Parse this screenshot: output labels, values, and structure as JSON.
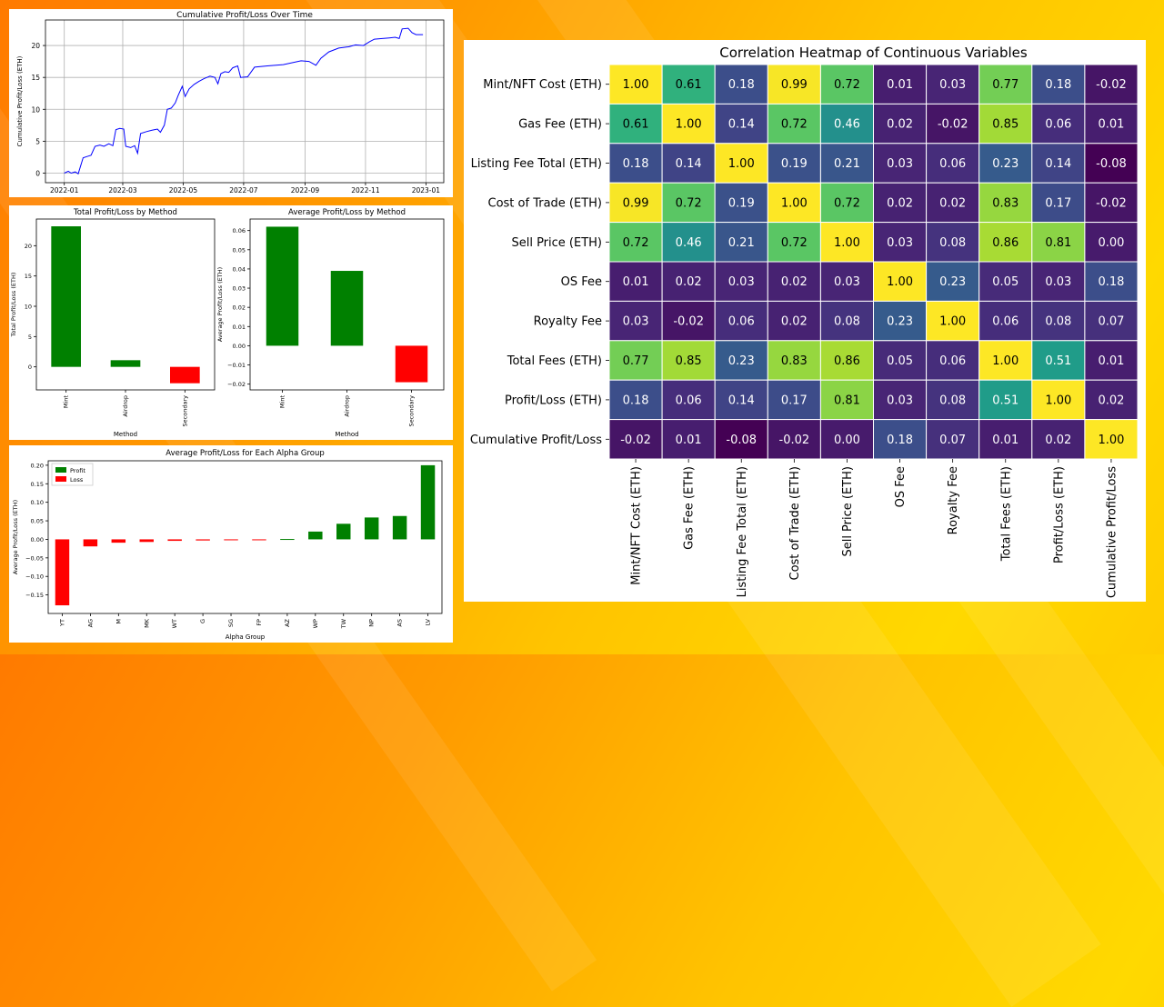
{
  "chart_data": [
    {
      "id": "cumulative",
      "type": "line",
      "title": "Cumulative Profit/Loss Over Time",
      "xlabel": "Date",
      "ylabel": "Cumulative Profit/Loss (ETH)",
      "x_ticks": [
        "2022-01",
        "2022-03",
        "2022-05",
        "2022-07",
        "2022-09",
        "2022-11",
        "2023-01"
      ],
      "y_ticks": [
        "0",
        "5",
        "10",
        "15",
        "20"
      ],
      "ylim": [
        -1.5,
        24
      ],
      "xlim": [
        "2021-12-13",
        "2023-01-19"
      ],
      "color": "#0000ff",
      "grid": true,
      "points": [
        [
          "2022-01-01",
          0.0
        ],
        [
          "2022-01-05",
          0.3
        ],
        [
          "2022-01-08",
          0.0
        ],
        [
          "2022-01-12",
          0.2
        ],
        [
          "2022-01-15",
          -0.1
        ],
        [
          "2022-01-20",
          2.4
        ],
        [
          "2022-01-24",
          2.6
        ],
        [
          "2022-01-28",
          2.8
        ],
        [
          "2022-02-01",
          4.2
        ],
        [
          "2022-02-06",
          4.4
        ],
        [
          "2022-02-10",
          4.2
        ],
        [
          "2022-02-15",
          4.6
        ],
        [
          "2022-02-19",
          4.3
        ],
        [
          "2022-02-22",
          6.8
        ],
        [
          "2022-02-26",
          7.0
        ],
        [
          "2022-03-02",
          6.9
        ],
        [
          "2022-03-04",
          4.2
        ],
        [
          "2022-03-09",
          4.0
        ],
        [
          "2022-03-13",
          4.3
        ],
        [
          "2022-03-16",
          3.1
        ],
        [
          "2022-03-19",
          6.2
        ],
        [
          "2022-03-25",
          6.5
        ],
        [
          "2022-03-30",
          6.7
        ],
        [
          "2022-04-05",
          6.9
        ],
        [
          "2022-04-08",
          6.4
        ],
        [
          "2022-04-12",
          7.5
        ],
        [
          "2022-04-15",
          10.0
        ],
        [
          "2022-04-19",
          10.2
        ],
        [
          "2022-04-23",
          11.0
        ],
        [
          "2022-04-26",
          12.2
        ],
        [
          "2022-04-30",
          13.6
        ],
        [
          "2022-05-03",
          12.0
        ],
        [
          "2022-05-07",
          13.2
        ],
        [
          "2022-05-12",
          13.9
        ],
        [
          "2022-05-17",
          14.4
        ],
        [
          "2022-05-22",
          14.8
        ],
        [
          "2022-05-28",
          15.2
        ],
        [
          "2022-06-02",
          15.0
        ],
        [
          "2022-06-05",
          14.0
        ],
        [
          "2022-06-08",
          15.6
        ],
        [
          "2022-06-12",
          15.9
        ],
        [
          "2022-06-16",
          15.8
        ],
        [
          "2022-06-20",
          16.5
        ],
        [
          "2022-06-25",
          16.8
        ],
        [
          "2022-06-28",
          15.0
        ],
        [
          "2022-07-05",
          15.1
        ],
        [
          "2022-07-12",
          16.6
        ],
        [
          "2022-07-25",
          16.8
        ],
        [
          "2022-08-10",
          17.0
        ],
        [
          "2022-08-28",
          17.6
        ],
        [
          "2022-09-05",
          17.5
        ],
        [
          "2022-09-12",
          16.9
        ],
        [
          "2022-09-17",
          18.0
        ],
        [
          "2022-09-25",
          19.0
        ],
        [
          "2022-10-05",
          19.6
        ],
        [
          "2022-10-15",
          19.8
        ],
        [
          "2022-10-22",
          20.1
        ],
        [
          "2022-10-30",
          20.0
        ],
        [
          "2022-11-05",
          20.6
        ],
        [
          "2022-11-10",
          21.0
        ],
        [
          "2022-11-18",
          21.1
        ],
        [
          "2022-11-25",
          21.2
        ],
        [
          "2022-12-01",
          21.3
        ],
        [
          "2022-12-05",
          21.1
        ],
        [
          "2022-12-08",
          22.6
        ],
        [
          "2022-12-14",
          22.7
        ],
        [
          "2022-12-18",
          22.0
        ],
        [
          "2022-12-22",
          21.7
        ],
        [
          "2022-12-29",
          21.7
        ]
      ]
    },
    {
      "id": "total",
      "type": "bar",
      "title": "Total Profit/Loss by Method",
      "xlabel": "Method",
      "ylabel": "Total Profit/Loss (ETH)",
      "categories": [
        "Mint",
        "Airdrop",
        "Secondary"
      ],
      "values": [
        23.2,
        1.1,
        -2.7
      ],
      "colors": [
        "#008000",
        "#008000",
        "#ff0000"
      ],
      "ylim": [
        -3.8,
        24.4
      ],
      "y_ticks": [
        0,
        5,
        10,
        15,
        20
      ]
    },
    {
      "id": "average",
      "type": "bar",
      "title": "Average Profit/Loss by Method",
      "xlabel": "Method",
      "ylabel": "Average Profit/Loss (ETH)",
      "categories": [
        "Mint",
        "Airdrop",
        "Secondary"
      ],
      "values": [
        0.062,
        0.039,
        -0.019
      ],
      "colors": [
        "#008000",
        "#008000",
        "#ff0000"
      ],
      "ylim": [
        -0.023,
        0.066
      ],
      "y_ticks": [
        -0.02,
        -0.01,
        0.0,
        0.01,
        0.02,
        0.03,
        0.04,
        0.05,
        0.06
      ],
      "y_tick_labels": [
        "−0.02",
        "−0.01",
        "0.00",
        "0.01",
        "0.02",
        "0.03",
        "0.04",
        "0.05",
        "0.06"
      ]
    },
    {
      "id": "alpha",
      "type": "bar",
      "title": "Average Profit/Loss for Each Alpha Group",
      "xlabel": "Alpha Group",
      "ylabel": "Average Profit/Loss (ETH)",
      "categories": [
        "YT",
        "AG",
        "M",
        "MK",
        "WT",
        "G",
        "SG",
        "FP",
        "AZ",
        "WP",
        "TW",
        "NP",
        "AS",
        "LV"
      ],
      "values": [
        -0.178,
        -0.019,
        -0.009,
        -0.007,
        -0.004,
        -0.003,
        -0.002,
        -0.002,
        0.001,
        0.021,
        0.042,
        0.059,
        0.063,
        0.2
      ],
      "ylim": [
        -0.2,
        0.212
      ],
      "y_ticks": [
        -0.15,
        -0.1,
        -0.05,
        0.0,
        0.05,
        0.1,
        0.15,
        0.2
      ],
      "y_tick_labels": [
        "−0.15",
        "−0.10",
        "−0.05",
        "0.00",
        "0.05",
        "0.10",
        "0.15",
        "0.20"
      ],
      "legend": [
        {
          "label": "Profit",
          "color": "#008000"
        },
        {
          "label": "Loss",
          "color": "#ff0000"
        }
      ],
      "legend_position": "top-left"
    },
    {
      "id": "heatmap",
      "type": "heatmap",
      "title": "Correlation Heatmap of Continuous Variables",
      "row_labels": [
        "Mint/NFT Cost (ETH)",
        "Gas Fee (ETH)",
        "Listing Fee Total (ETH)",
        "Cost of Trade (ETH)",
        "Sell Price (ETH)",
        "OS Fee",
        "Royalty Fee",
        "Total Fees (ETH)",
        "Profit/Loss (ETH) ",
        "Cumulative Profit/Loss"
      ],
      "col_labels": [
        "Mint/NFT Cost (ETH)",
        "Gas Fee (ETH)",
        "Listing Fee Total (ETH)",
        "Cost of Trade (ETH)",
        "Sell Price (ETH)",
        "OS Fee",
        "Royalty Fee",
        "Total Fees (ETH)",
        "Profit/Loss (ETH)",
        "Cumulative Profit/Loss"
      ],
      "colormap": "viridis",
      "matrix": [
        [
          1.0,
          0.61,
          0.18,
          0.99,
          0.72,
          0.01,
          0.03,
          0.77,
          0.18,
          -0.02
        ],
        [
          0.61,
          1.0,
          0.14,
          0.72,
          0.46,
          0.02,
          -0.02,
          0.85,
          0.06,
          0.01
        ],
        [
          0.18,
          0.14,
          1.0,
          0.19,
          0.21,
          0.03,
          0.06,
          0.23,
          0.14,
          -0.08
        ],
        [
          0.99,
          0.72,
          0.19,
          1.0,
          0.72,
          0.02,
          0.02,
          0.83,
          0.17,
          -0.02
        ],
        [
          0.72,
          0.46,
          0.21,
          0.72,
          1.0,
          0.03,
          0.08,
          0.86,
          0.81,
          0.0
        ],
        [
          0.01,
          0.02,
          0.03,
          0.02,
          0.03,
          1.0,
          0.23,
          0.05,
          0.03,
          0.18
        ],
        [
          0.03,
          -0.02,
          0.06,
          0.02,
          0.08,
          0.23,
          1.0,
          0.06,
          0.08,
          0.07
        ],
        [
          0.77,
          0.85,
          0.23,
          0.83,
          0.86,
          0.05,
          0.06,
          1.0,
          0.51,
          0.01
        ],
        [
          0.18,
          0.06,
          0.14,
          0.17,
          0.81,
          0.03,
          0.08,
          0.51,
          1.0,
          0.02
        ],
        [
          -0.02,
          0.01,
          -0.08,
          -0.02,
          0.0,
          0.18,
          0.07,
          0.01,
          0.02,
          1.0
        ]
      ]
    }
  ]
}
